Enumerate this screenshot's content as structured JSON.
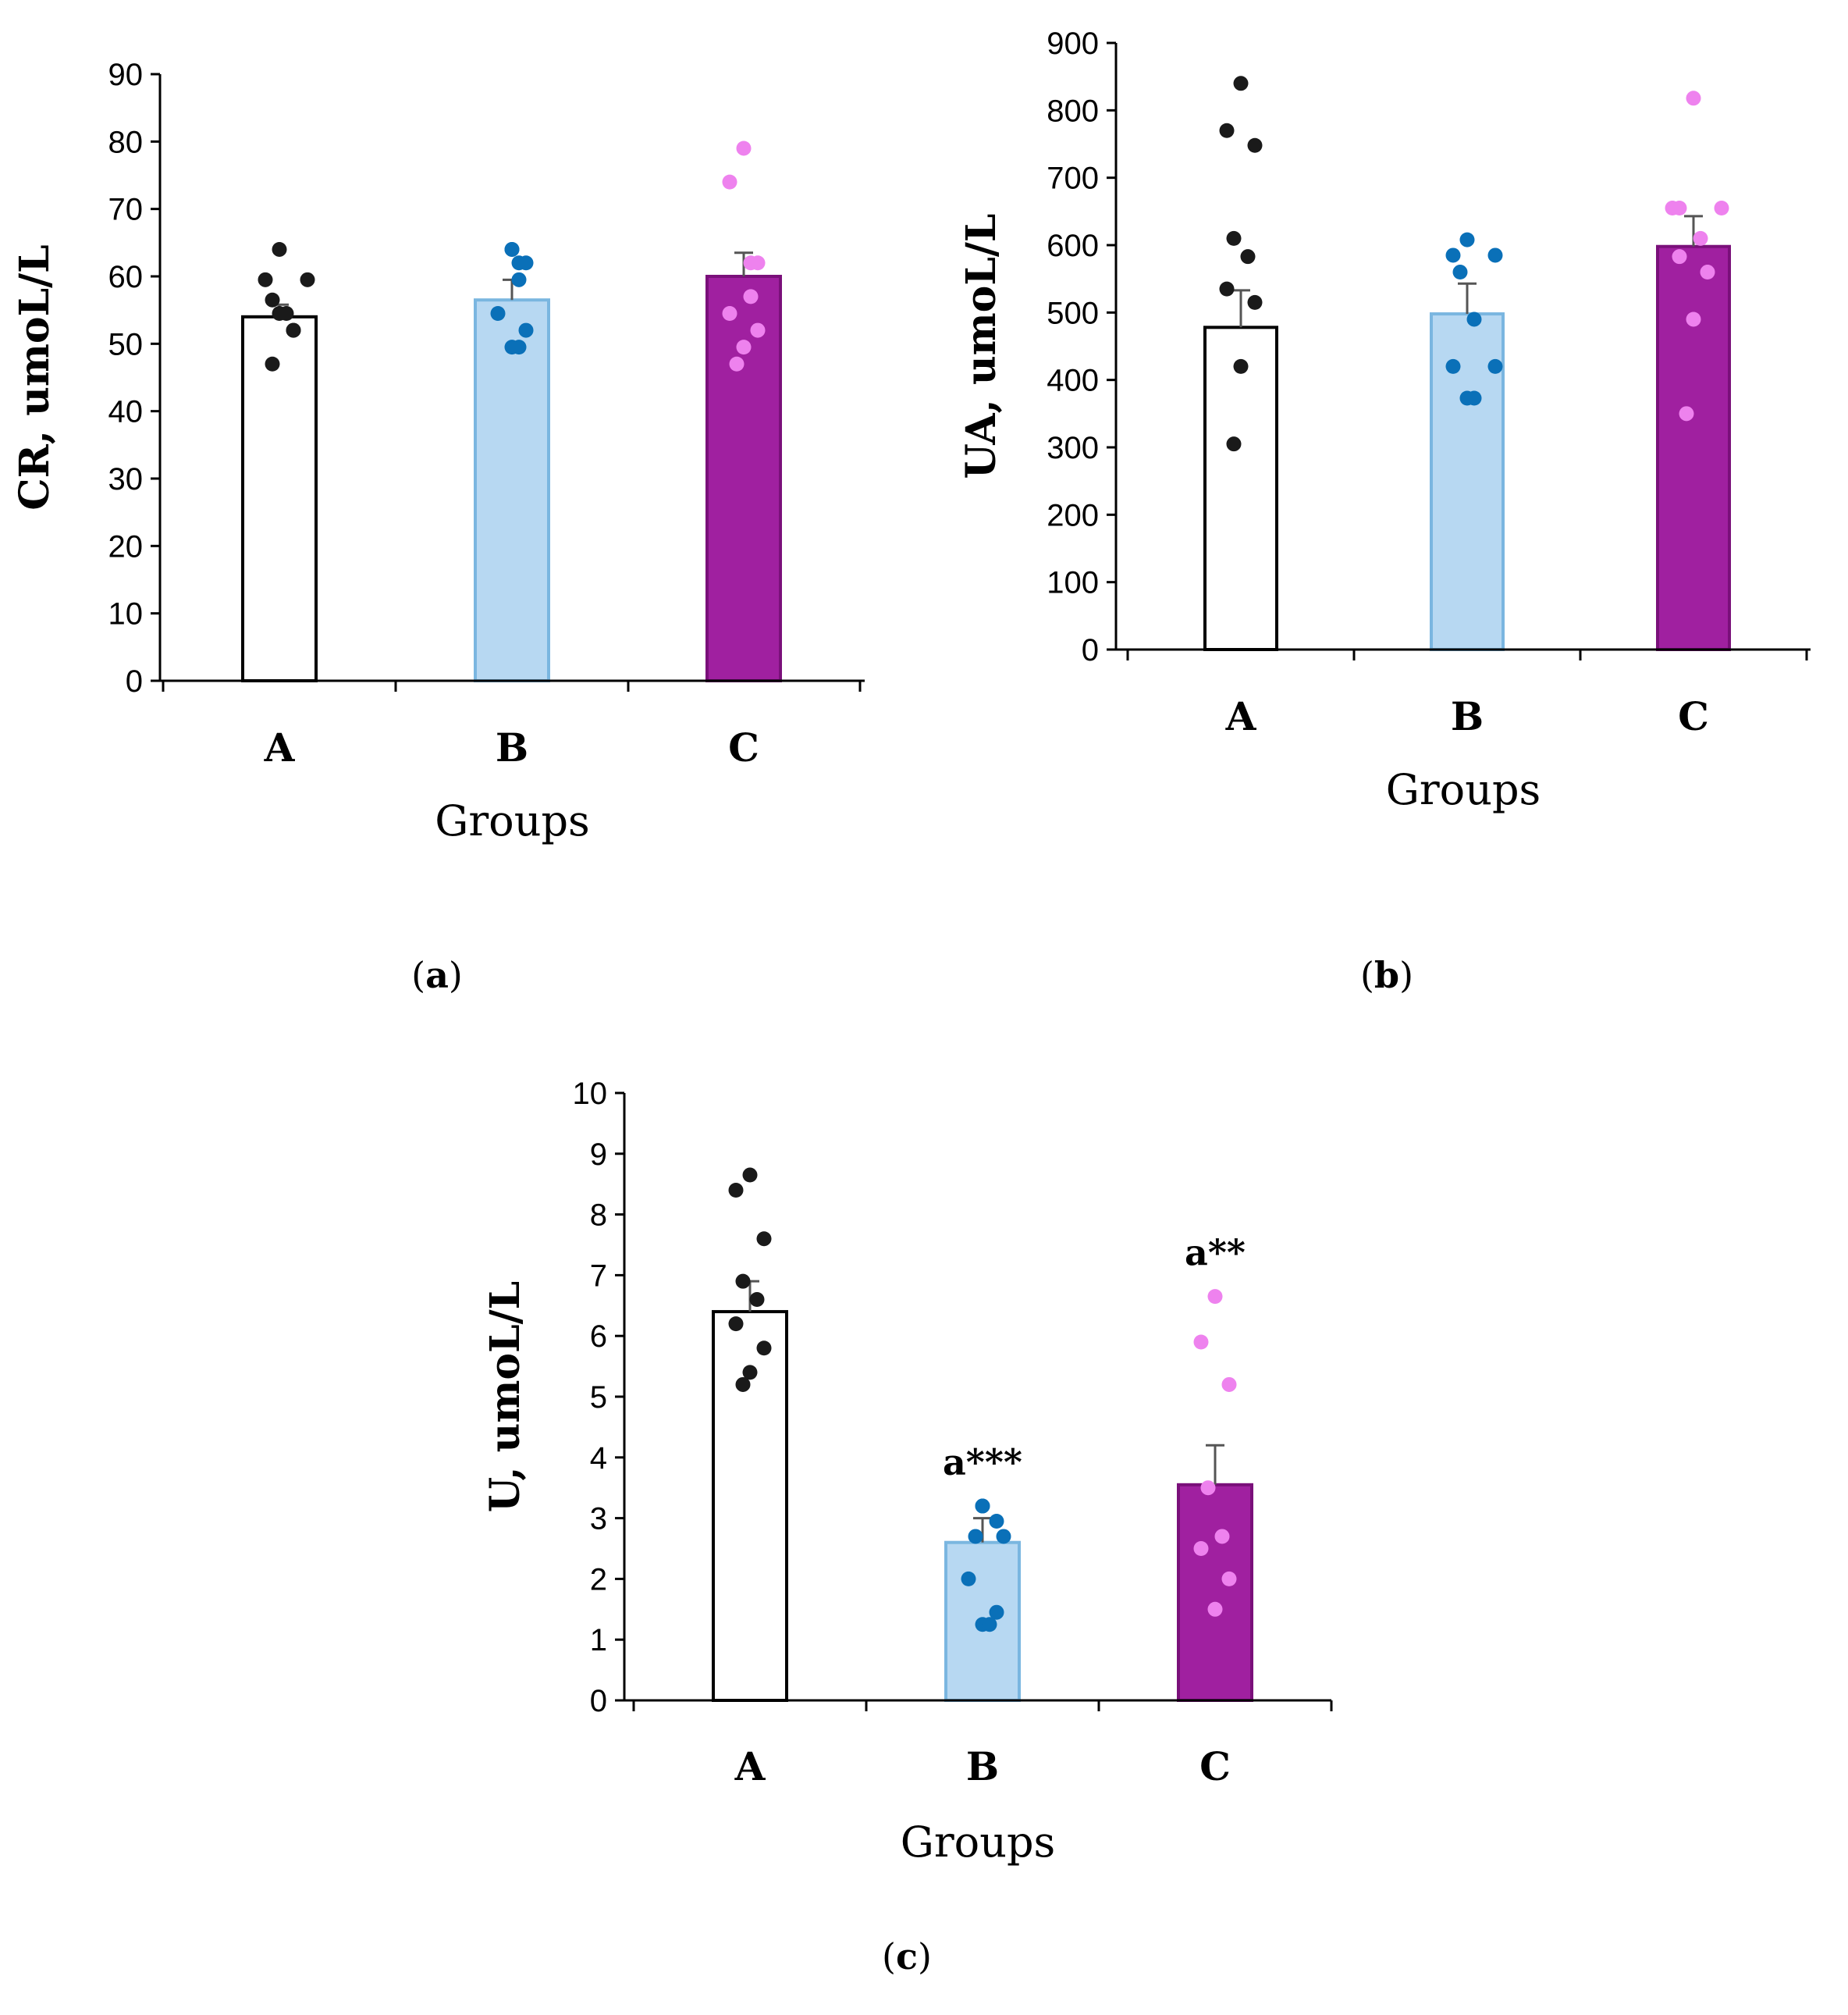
{
  "colors": {
    "bar_a_fill": "#ffffff",
    "bar_b_fill": "#b7d8f2",
    "bar_b_stroke": "#7ab6e0",
    "bar_c_fill": "#a020a0",
    "bar_c_stroke": "#7a107a",
    "points_a": "#1a1a1a",
    "points_b": "#0a70b8",
    "points_c": "#ee82ee",
    "axis": "#000000",
    "error_bar": "#555555"
  },
  "chart_data": [
    {
      "id": "a",
      "type": "bar",
      "caption_letter": "a",
      "xlabel": "Groups",
      "ylabel": "CR, umoL/L",
      "ylim": [
        0,
        90
      ],
      "yticks": [
        0,
        10,
        20,
        30,
        40,
        50,
        60,
        70,
        80,
        90
      ],
      "categories": [
        "A",
        "B",
        "C"
      ],
      "values": [
        54,
        56.5,
        60
      ],
      "errors": [
        1.8,
        3,
        3.5
      ],
      "annotations": [
        "",
        "",
        ""
      ],
      "points": [
        [
          64,
          59.5,
          59.5,
          56.5,
          54.5,
          54.5,
          52,
          52,
          47
        ],
        [
          64,
          64,
          62,
          62,
          59.5,
          54.5,
          52,
          49.5,
          49.5
        ],
        [
          79,
          74,
          62,
          62,
          57,
          54.5,
          52,
          49.5,
          47
        ]
      ]
    },
    {
      "id": "b",
      "type": "bar",
      "caption_letter": "b",
      "xlabel": "Groups",
      "ylabel": "UA, umoL/L",
      "ylim": [
        0,
        900
      ],
      "yticks": [
        0,
        100,
        200,
        300,
        400,
        500,
        600,
        700,
        800,
        900
      ],
      "categories": [
        "A",
        "B",
        "C"
      ],
      "values": [
        478,
        498,
        598
      ],
      "errors": [
        55,
        45,
        45
      ],
      "annotations": [
        "",
        "",
        ""
      ],
      "points": [
        [
          840,
          770,
          748,
          610,
          583,
          535,
          515,
          420,
          305
        ],
        [
          608,
          585,
          585,
          560,
          490,
          420,
          420,
          373,
          373
        ],
        [
          818,
          655,
          655,
          655,
          610,
          583,
          560,
          490,
          350
        ]
      ]
    },
    {
      "id": "c",
      "type": "bar",
      "caption_letter": "c",
      "xlabel": "Groups",
      "ylabel": "U, umoL/L",
      "ylim": [
        0,
        10
      ],
      "yticks": [
        0,
        1,
        2,
        3,
        4,
        5,
        6,
        7,
        8,
        9,
        10
      ],
      "categories": [
        "A",
        "B",
        "C"
      ],
      "values": [
        6.4,
        2.6,
        3.55
      ],
      "errors": [
        0.5,
        0.4,
        0.65
      ],
      "annotations": [
        "",
        "a***",
        "a**"
      ],
      "points": [
        [
          8.65,
          8.4,
          7.6,
          6.9,
          6.6,
          6.2,
          5.8,
          5.4,
          5.2
        ],
        [
          3.2,
          3.2,
          2.95,
          2.7,
          2.7,
          2.0,
          1.45,
          1.25,
          1.25
        ],
        [
          6.65,
          5.9,
          5.2,
          3.5,
          2.7,
          2.5,
          2.0,
          1.5
        ]
      ]
    }
  ]
}
